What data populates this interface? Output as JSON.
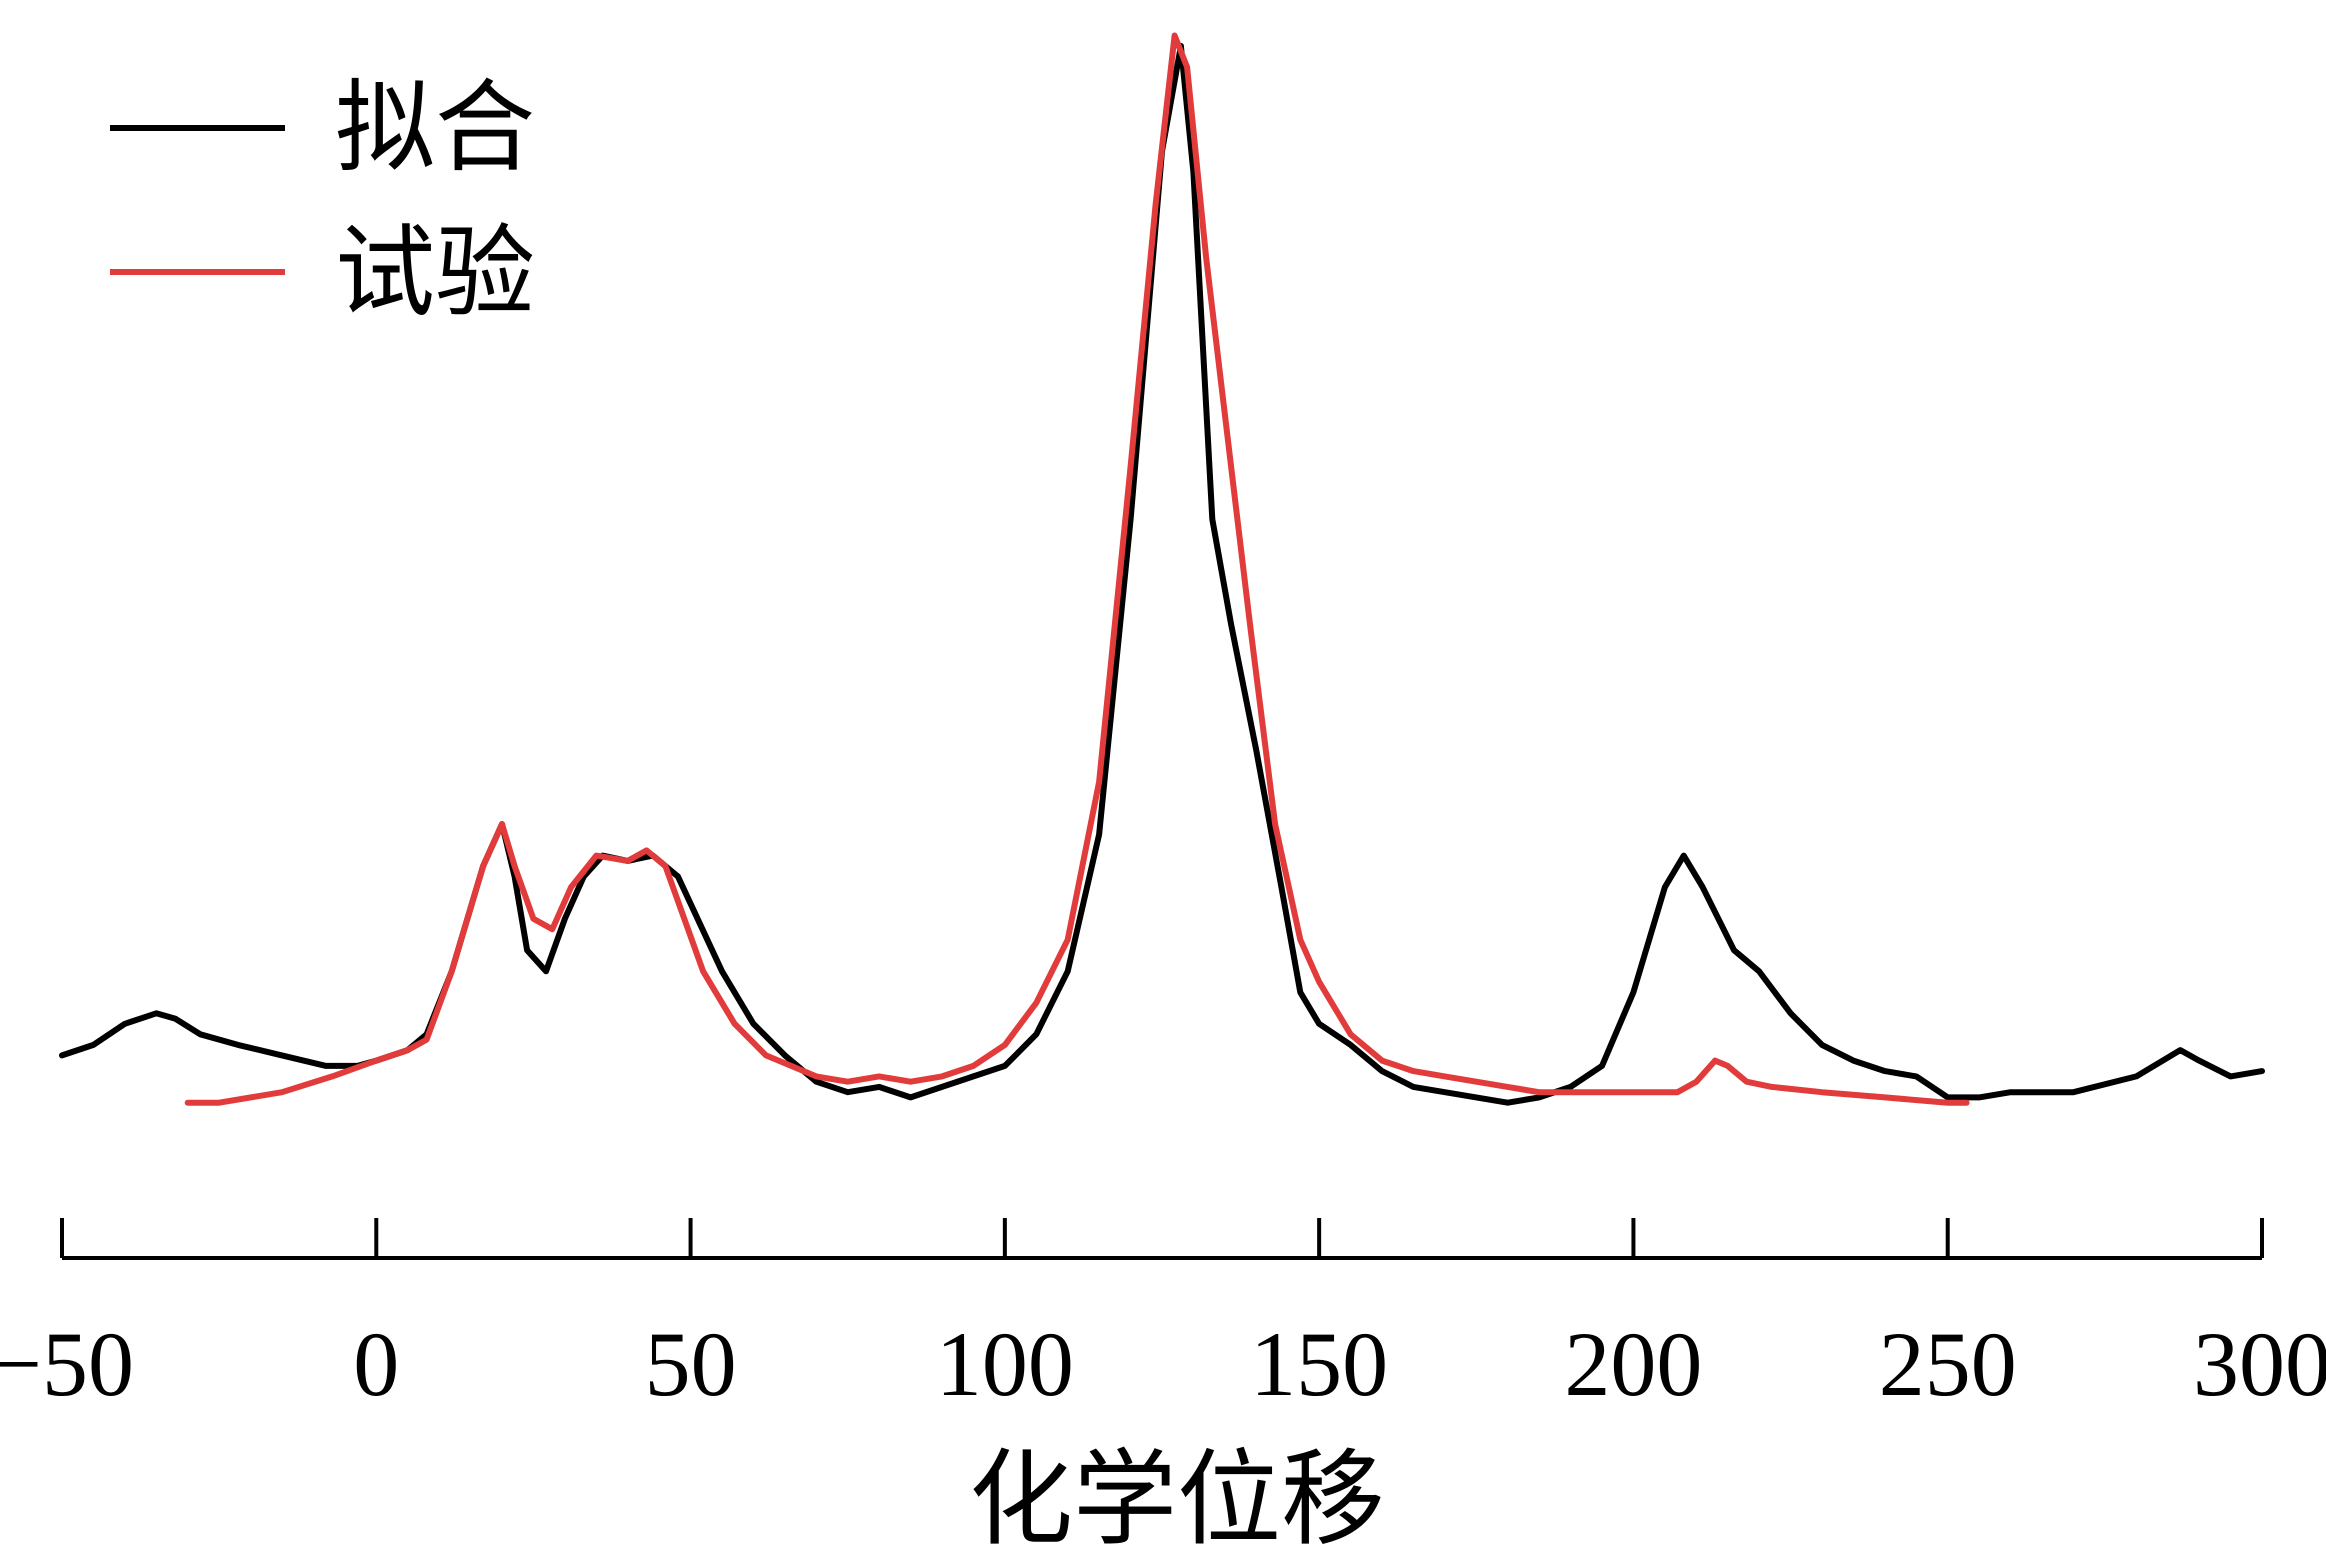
{
  "chart_data": {
    "type": "line",
    "title": "",
    "xlabel": "化学位移",
    "ylabel": "",
    "xlim": [
      -50,
      300
    ],
    "ylim": [
      -0.05,
      1.02
    ],
    "x_ticks": [
      -50,
      0,
      50,
      100,
      150,
      200,
      250,
      300
    ],
    "x_tick_labels": [
      "−50",
      "0",
      "50",
      "100",
      "150",
      "200",
      "250",
      "300"
    ],
    "y_axis_shown": false,
    "grid": false,
    "legend_position": "top-left",
    "series": [
      {
        "name": "拟合",
        "color": "#000000",
        "points": [
          [
            -50,
            0.04
          ],
          [
            -45,
            0.05
          ],
          [
            -40,
            0.07
          ],
          [
            -35,
            0.08
          ],
          [
            -32,
            0.075
          ],
          [
            -28,
            0.06
          ],
          [
            -22,
            0.05
          ],
          [
            -15,
            0.04
          ],
          [
            -8,
            0.03
          ],
          [
            -3,
            0.03
          ],
          [
            0,
            0.035
          ],
          [
            5,
            0.045
          ],
          [
            8,
            0.06
          ],
          [
            12,
            0.12
          ],
          [
            17,
            0.22
          ],
          [
            20,
            0.26
          ],
          [
            22,
            0.21
          ],
          [
            24,
            0.14
          ],
          [
            27,
            0.12
          ],
          [
            30,
            0.17
          ],
          [
            33,
            0.21
          ],
          [
            36,
            0.23
          ],
          [
            40,
            0.225
          ],
          [
            44,
            0.23
          ],
          [
            48,
            0.21
          ],
          [
            55,
            0.12
          ],
          [
            60,
            0.07
          ],
          [
            65,
            0.04
          ],
          [
            70,
            0.015
          ],
          [
            75,
            0.005
          ],
          [
            80,
            0.01
          ],
          [
            85,
            0.0
          ],
          [
            90,
            0.01
          ],
          [
            95,
            0.02
          ],
          [
            100,
            0.03
          ],
          [
            105,
            0.06
          ],
          [
            110,
            0.12
          ],
          [
            115,
            0.25
          ],
          [
            120,
            0.55
          ],
          [
            125,
            0.9
          ],
          [
            128,
            1.0
          ],
          [
            130,
            0.88
          ],
          [
            133,
            0.55
          ],
          [
            136,
            0.45
          ],
          [
            140,
            0.33
          ],
          [
            144,
            0.2
          ],
          [
            147,
            0.1
          ],
          [
            150,
            0.07
          ],
          [
            155,
            0.05
          ],
          [
            160,
            0.025
          ],
          [
            165,
            0.01
          ],
          [
            170,
            0.005
          ],
          [
            175,
            0.0
          ],
          [
            180,
            -0.005
          ],
          [
            185,
            0.0
          ],
          [
            190,
            0.01
          ],
          [
            195,
            0.03
          ],
          [
            200,
            0.1
          ],
          [
            205,
            0.2
          ],
          [
            208,
            0.23
          ],
          [
            211,
            0.2
          ],
          [
            216,
            0.14
          ],
          [
            220,
            0.12
          ],
          [
            225,
            0.08
          ],
          [
            230,
            0.05
          ],
          [
            235,
            0.035
          ],
          [
            240,
            0.025
          ],
          [
            245,
            0.02
          ],
          [
            250,
            0.0
          ],
          [
            255,
            0.0
          ],
          [
            260,
            0.005
          ],
          [
            270,
            0.005
          ],
          [
            280,
            0.02
          ],
          [
            287,
            0.045
          ],
          [
            290,
            0.035
          ],
          [
            295,
            0.02
          ],
          [
            300,
            0.025
          ]
        ]
      },
      {
        "name": "试验",
        "color": "#e23b3b",
        "points": [
          [
            -30,
            -0.005
          ],
          [
            -25,
            -0.005
          ],
          [
            -15,
            0.005
          ],
          [
            -7,
            0.02
          ],
          [
            0,
            0.035
          ],
          [
            5,
            0.045
          ],
          [
            8,
            0.055
          ],
          [
            12,
            0.12
          ],
          [
            17,
            0.22
          ],
          [
            20,
            0.26
          ],
          [
            22,
            0.22
          ],
          [
            25,
            0.17
          ],
          [
            28,
            0.16
          ],
          [
            31,
            0.2
          ],
          [
            35,
            0.23
          ],
          [
            40,
            0.225
          ],
          [
            43,
            0.235
          ],
          [
            46,
            0.22
          ],
          [
            52,
            0.12
          ],
          [
            57,
            0.07
          ],
          [
            62,
            0.04
          ],
          [
            70,
            0.02
          ],
          [
            75,
            0.015
          ],
          [
            80,
            0.02
          ],
          [
            85,
            0.015
          ],
          [
            90,
            0.02
          ],
          [
            95,
            0.03
          ],
          [
            100,
            0.05
          ],
          [
            105,
            0.09
          ],
          [
            110,
            0.15
          ],
          [
            115,
            0.3
          ],
          [
            120,
            0.6
          ],
          [
            124,
            0.85
          ],
          [
            127,
            1.01
          ],
          [
            129,
            0.98
          ],
          [
            132,
            0.8
          ],
          [
            136,
            0.6
          ],
          [
            139,
            0.45
          ],
          [
            143,
            0.26
          ],
          [
            147,
            0.15
          ],
          [
            150,
            0.11
          ],
          [
            155,
            0.06
          ],
          [
            160,
            0.035
          ],
          [
            165,
            0.025
          ],
          [
            170,
            0.02
          ],
          [
            175,
            0.015
          ],
          [
            180,
            0.01
          ],
          [
            185,
            0.005
          ],
          [
            190,
            0.005
          ],
          [
            200,
            0.005
          ],
          [
            207,
            0.005
          ],
          [
            210,
            0.015
          ],
          [
            213,
            0.035
          ],
          [
            215,
            0.03
          ],
          [
            218,
            0.015
          ],
          [
            222,
            0.01
          ],
          [
            230,
            0.005
          ],
          [
            240,
            0.0
          ],
          [
            250,
            -0.005
          ],
          [
            253,
            -0.005
          ]
        ]
      }
    ]
  }
}
